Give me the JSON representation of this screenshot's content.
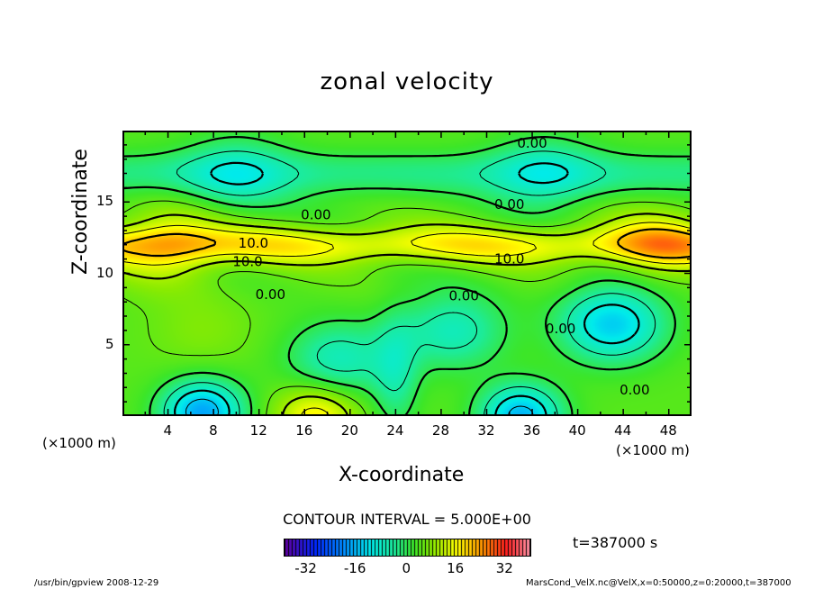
{
  "chart_data": {
    "type": "heatmap",
    "subtype": "filled-contour",
    "title": "zonal velocity",
    "xlabel": "X-coordinate",
    "ylabel": "Z-coordinate",
    "x_unit_label": "(×1000 m)",
    "y_unit_label": "(×1000 m)",
    "xlim": [
      0,
      50
    ],
    "ylim": [
      0,
      20
    ],
    "xticks": [
      "4",
      "8",
      "12",
      "16",
      "20",
      "24",
      "28",
      "32",
      "36",
      "40",
      "44",
      "48"
    ],
    "yticks": [
      "5",
      "10",
      "15"
    ],
    "contour_interval_label": "CONTOUR INTERVAL = 5.000E+00",
    "contour_interval": 5,
    "colorbar": {
      "range": [
        -40,
        40
      ],
      "ticks": [
        "-32",
        "-16",
        "0",
        "16",
        "32"
      ]
    },
    "time_label": "t=387000 s",
    "contour_labels": [
      {
        "text": "0.00",
        "x": 36,
        "z": 18.8
      },
      {
        "text": "0.00",
        "x": 34,
        "z": 14.5
      },
      {
        "text": "0.00",
        "x": 17,
        "z": 13.8
      },
      {
        "text": "10.0",
        "x": 11.5,
        "z": 11.8
      },
      {
        "text": "10.0",
        "x": 11,
        "z": 10.5
      },
      {
        "text": "10.0",
        "x": 34,
        "z": 10.7
      },
      {
        "text": "0.00",
        "x": 13,
        "z": 8.2
      },
      {
        "text": "0.00",
        "x": 30,
        "z": 8.1
      },
      {
        "text": "0.00",
        "x": 38.5,
        "z": 5.8
      },
      {
        "text": "0.00",
        "x": 45,
        "z": 1.5
      }
    ],
    "field_features": [
      {
        "x": 4,
        "z": 12,
        "value": 18
      },
      {
        "x": 47,
        "z": 12,
        "value": 16
      },
      {
        "x": 7,
        "z": 0.3,
        "value": -26
      },
      {
        "x": 17,
        "z": 0,
        "value": 22
      },
      {
        "x": 35,
        "z": 0,
        "value": -24
      },
      {
        "x": 19,
        "z": 4,
        "value": -11
      },
      {
        "x": 29,
        "z": 6,
        "value": -11
      },
      {
        "x": 43,
        "z": 6.5,
        "value": -21
      },
      {
        "x": 7,
        "z": 6,
        "value": 8
      },
      {
        "x": 10,
        "z": 17,
        "value": -8
      },
      {
        "x": 37,
        "z": 17,
        "value": -8
      }
    ]
  },
  "footer": {
    "left": "/usr/bin/gpview   2008-12-29",
    "right": "MarsCond_VelX.nc@VelX,x=0:50000,z=0:20000,t=387000"
  }
}
